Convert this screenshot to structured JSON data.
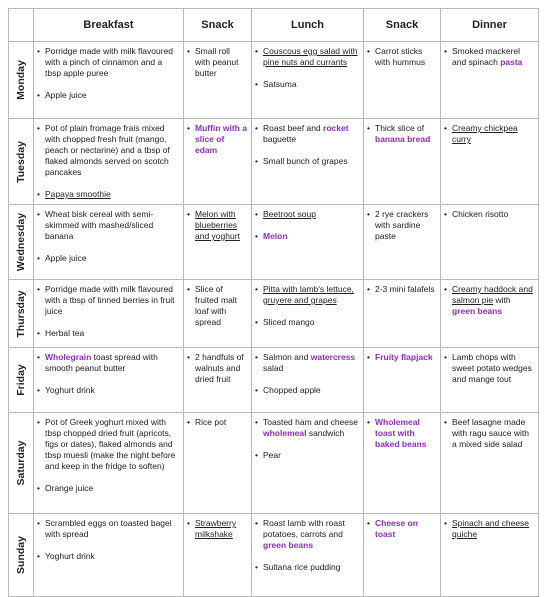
{
  "headers": [
    "",
    "Breakfast",
    "Snack",
    "Lunch",
    "Snack",
    "Dinner"
  ],
  "days": [
    {
      "name": "Monday",
      "cells": [
        [
          [
            {
              "t": "Porridge made with milk flavoured with a pinch of cinnamon and a tbsp apple puree"
            }
          ],
          [
            {
              "t": "Apple juice"
            }
          ]
        ],
        [
          [
            {
              "t": "Small roll with peanut butter"
            }
          ]
        ],
        [
          [
            {
              "t": "Couscous egg salad with pine nuts and currants",
              "s": "u"
            }
          ],
          [
            {
              "t": "Satsuma"
            }
          ]
        ],
        [
          [
            {
              "t": "Carrot sticks with hummus"
            }
          ]
        ],
        [
          [
            {
              "t": "Smoked mackerel and spinach "
            },
            {
              "t": "pasta",
              "s": "hl"
            }
          ]
        ]
      ]
    },
    {
      "name": "Tuesday",
      "cells": [
        [
          [
            {
              "t": "Pot of plain fromage frais mixed with chopped fresh fruit (mango, peach or nectarine) and a tbsp of flaked almonds served on scotch pancakes"
            }
          ],
          [
            {
              "t": "Papaya smoothie",
              "s": "u"
            }
          ]
        ],
        [
          [
            {
              "t": "Muffin with a slice of edam",
              "s": "hl"
            }
          ]
        ],
        [
          [
            {
              "t": "Roast beef and "
            },
            {
              "t": "rocket",
              "s": "hl"
            },
            {
              "t": " baguette"
            }
          ],
          [
            {
              "t": "Small bunch of grapes"
            }
          ]
        ],
        [
          [
            {
              "t": "Thick slice of "
            },
            {
              "t": "banana bread",
              "s": "hl"
            }
          ]
        ],
        [
          [
            {
              "t": "Creamy chickpea curry",
              "s": "u"
            }
          ]
        ]
      ]
    },
    {
      "name": "Wednesday",
      "cells": [
        [
          [
            {
              "t": "Wheat bisk cereal with semi-skimmed with mashed/sliced banana"
            }
          ],
          [
            {
              "t": "Apple juice"
            }
          ]
        ],
        [
          [
            {
              "t": "Melon with blueberries and yoghurt",
              "s": "u"
            }
          ]
        ],
        [
          [
            {
              "t": "Beetroot soup",
              "s": "u"
            }
          ],
          [
            {
              "t": "Melon",
              "s": "hl"
            }
          ]
        ],
        [
          [
            {
              "t": "2 rye crackers with sardine paste"
            }
          ]
        ],
        [
          [
            {
              "t": "Chicken risotto"
            }
          ]
        ]
      ]
    },
    {
      "name": "Thursday",
      "cells": [
        [
          [
            {
              "t": "Porridge made with milk flavoured with a tbsp of tinned berries in fruit juice"
            }
          ],
          [
            {
              "t": "Herbal tea"
            }
          ]
        ],
        [
          [
            {
              "t": "Slice of fruited malt loaf with spread"
            }
          ]
        ],
        [
          [
            {
              "t": "Pitta with lamb's lettuce, gruyere and grapes",
              "s": "u"
            }
          ],
          [
            {
              "t": "Sliced mango"
            }
          ]
        ],
        [
          [
            {
              "t": "2-3 mini falafels"
            }
          ]
        ],
        [
          [
            {
              "t": "Creamy haddock and salmon pie",
              "s": "u"
            },
            {
              "t": " with "
            },
            {
              "t": "green beans",
              "s": "hl"
            }
          ]
        ]
      ]
    },
    {
      "name": "Friday",
      "cells": [
        [
          [
            {
              "t": "Wholegrain",
              "s": "hl"
            },
            {
              "t": " toast spread with smooth peanut butter"
            }
          ],
          [
            {
              "t": "Yoghurt drink"
            }
          ]
        ],
        [
          [
            {
              "t": "2 handfuls of walnuts and dried fruit"
            }
          ]
        ],
        [
          [
            {
              "t": "Salmon and "
            },
            {
              "t": "watercress",
              "s": "hl"
            },
            {
              "t": " salad"
            }
          ],
          [
            {
              "t": "Chopped apple"
            }
          ]
        ],
        [
          [
            {
              "t": "Fruity flapjack",
              "s": "hl"
            }
          ]
        ],
        [
          [
            {
              "t": "Lamb chops with sweet potato wedges and mange tout"
            }
          ]
        ]
      ]
    },
    {
      "name": "Saturday",
      "cells": [
        [
          [
            {
              "t": "Pot of Greek yoghurt mixed with tbsp chopped dried fruit (apricots, figs or dates), flaked almonds and tbsp muesli (make the night before and keep in the fridge to soften)"
            }
          ],
          [
            {
              "t": "Orange juice"
            }
          ]
        ],
        [
          [
            {
              "t": "Rice pot"
            }
          ]
        ],
        [
          [
            {
              "t": "Toasted ham and cheese "
            },
            {
              "t": "wholemeal",
              "s": "hl"
            },
            {
              "t": " sandwich"
            }
          ],
          [
            {
              "t": "Pear"
            }
          ]
        ],
        [
          [
            {
              "t": "Wholemeal toast with baked beans",
              "s": "hl"
            }
          ]
        ],
        [
          [
            {
              "t": "Beef lasagne made with ragu sauce with a mixed side salad"
            }
          ]
        ]
      ]
    },
    {
      "name": "Sunday",
      "cells": [
        [
          [
            {
              "t": "Scrambled eggs on toasted bagel with spread"
            }
          ],
          [
            {
              "t": "Yoghurt drink"
            }
          ]
        ],
        [
          [
            {
              "t": "Strawberry milkshake",
              "s": "u"
            }
          ]
        ],
        [
          [
            {
              "t": "Roast lamb with roast potatoes, carrots and "
            },
            {
              "t": "green beans",
              "s": "hl"
            }
          ],
          [
            {
              "t": "Sultana rice pudding"
            }
          ]
        ],
        [
          [
            {
              "t": "Cheese on toast",
              "s": "hl"
            }
          ]
        ],
        [
          [
            {
              "t": "Spinach and cheese quiche",
              "s": "u"
            }
          ]
        ]
      ]
    }
  ]
}
